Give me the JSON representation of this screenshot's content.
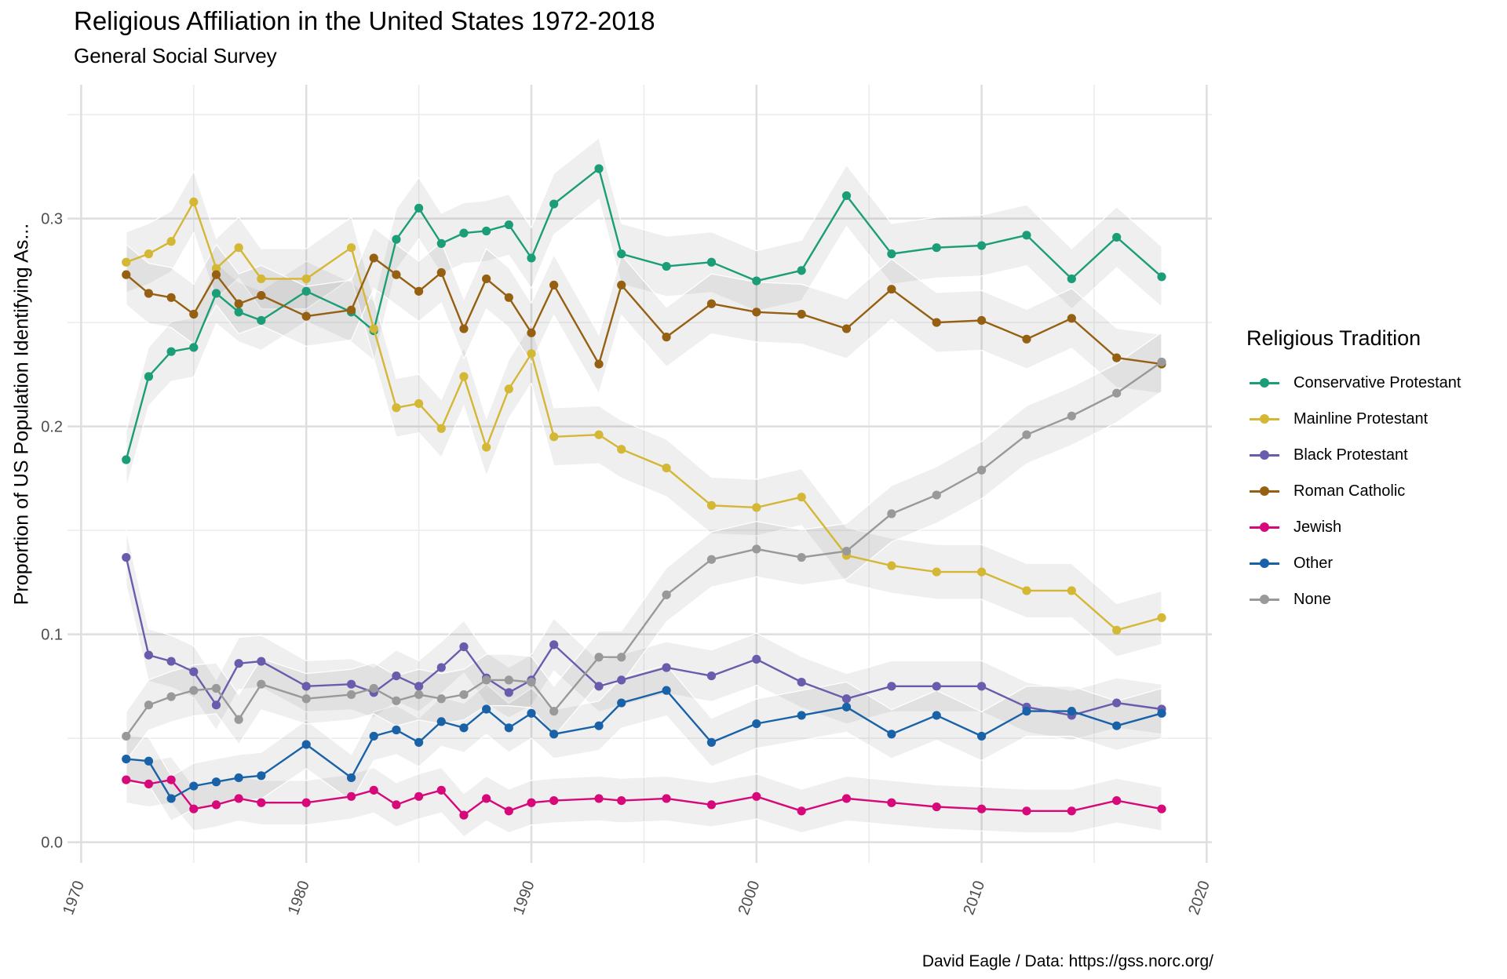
{
  "title": "Religious Affiliation in the United States 1972-2018",
  "subtitle": "General Social Survey",
  "caption": "David Eagle / Data: https://gss.norc.org/",
  "chart_data": {
    "type": "line",
    "ylabel": "Proportion of US Population Identifying As...",
    "xlim": [
      1970,
      2020
    ],
    "ylim": [
      0,
      0.35
    ],
    "x_ticks": [
      "1970",
      "1980",
      "1990",
      "2000",
      "2010",
      "2020"
    ],
    "y_ticks": [
      "0.0",
      "0.1",
      "0.2",
      "0.3"
    ],
    "grid": true,
    "legend_title": "Religious Tradition",
    "legend_position": "right",
    "x": [
      1972,
      1973,
      1974,
      1975,
      1976,
      1977,
      1978,
      1980,
      1982,
      1983,
      1984,
      1985,
      1986,
      1987,
      1988,
      1989,
      1990,
      1991,
      1993,
      1994,
      1996,
      1998,
      2000,
      2002,
      2004,
      2006,
      2008,
      2010,
      2012,
      2014,
      2016,
      2018
    ],
    "series": [
      {
        "name": "Conservative Protestant",
        "color": "#1b9e77",
        "values": [
          0.184,
          0.224,
          0.236,
          0.238,
          0.264,
          0.255,
          0.251,
          0.265,
          0.255,
          0.246,
          0.29,
          0.305,
          0.288,
          0.293,
          0.294,
          0.297,
          0.281,
          0.307,
          0.324,
          0.283,
          0.277,
          0.279,
          0.27,
          0.275,
          0.311,
          0.283,
          0.286,
          0.287,
          0.292,
          0.271,
          0.291,
          0.272
        ]
      },
      {
        "name": "Mainline Protestant",
        "color": "#d4b735",
        "values": [
          0.279,
          0.283,
          0.289,
          0.308,
          0.276,
          0.286,
          0.271,
          0.271,
          0.286,
          0.247,
          0.209,
          0.211,
          0.199,
          0.224,
          0.19,
          0.218,
          0.235,
          0.195,
          0.196,
          0.189,
          0.18,
          0.162,
          0.161,
          0.166,
          0.138,
          0.133,
          0.13,
          0.13,
          0.121,
          0.121,
          0.102,
          0.108
        ]
      },
      {
        "name": "Black Protestant",
        "color": "#6a5cad",
        "values": [
          0.137,
          0.09,
          0.087,
          0.082,
          0.066,
          0.086,
          0.087,
          0.075,
          0.076,
          0.072,
          0.08,
          0.075,
          0.084,
          0.094,
          0.079,
          0.072,
          0.078,
          0.095,
          0.075,
          0.078,
          0.084,
          0.08,
          0.088,
          0.077,
          0.069,
          0.075,
          0.075,
          0.075,
          0.065,
          0.061,
          0.067,
          0.064
        ]
      },
      {
        "name": "Roman Catholic",
        "color": "#956012",
        "values": [
          0.273,
          0.264,
          0.262,
          0.254,
          0.273,
          0.259,
          0.263,
          0.253,
          0.256,
          0.281,
          0.273,
          0.265,
          0.274,
          0.247,
          0.271,
          0.262,
          0.245,
          0.268,
          0.23,
          0.268,
          0.243,
          0.259,
          0.255,
          0.254,
          0.247,
          0.266,
          0.25,
          0.251,
          0.242,
          0.252,
          0.233,
          0.23
        ]
      },
      {
        "name": "Jewish",
        "color": "#d6087a",
        "values": [
          0.03,
          0.028,
          0.03,
          0.016,
          0.018,
          0.021,
          0.019,
          0.019,
          0.022,
          0.025,
          0.018,
          0.022,
          0.025,
          0.013,
          0.021,
          0.015,
          0.019,
          0.02,
          0.021,
          0.02,
          0.021,
          0.018,
          0.022,
          0.015,
          0.021,
          0.019,
          0.017,
          0.016,
          0.015,
          0.015,
          0.02,
          0.016
        ]
      },
      {
        "name": "Other",
        "color": "#1a62a8",
        "values": [
          0.04,
          0.039,
          0.021,
          0.027,
          0.029,
          0.031,
          0.032,
          0.047,
          0.031,
          0.051,
          0.054,
          0.048,
          0.058,
          0.055,
          0.064,
          0.055,
          0.062,
          0.052,
          0.056,
          0.067,
          0.073,
          0.048,
          0.057,
          0.061,
          0.065,
          0.052,
          0.061,
          0.051,
          0.063,
          0.063,
          0.056,
          0.062
        ]
      },
      {
        "name": "None",
        "color": "#999999",
        "values": [
          0.051,
          0.066,
          0.07,
          0.073,
          0.074,
          0.059,
          0.076,
          0.069,
          0.071,
          0.074,
          0.068,
          0.071,
          0.069,
          0.071,
          0.078,
          0.078,
          0.077,
          0.063,
          0.089,
          0.089,
          0.119,
          0.136,
          0.141,
          0.137,
          0.14,
          0.158,
          0.167,
          0.179,
          0.196,
          0.205,
          0.216,
          0.231
        ]
      }
    ]
  }
}
